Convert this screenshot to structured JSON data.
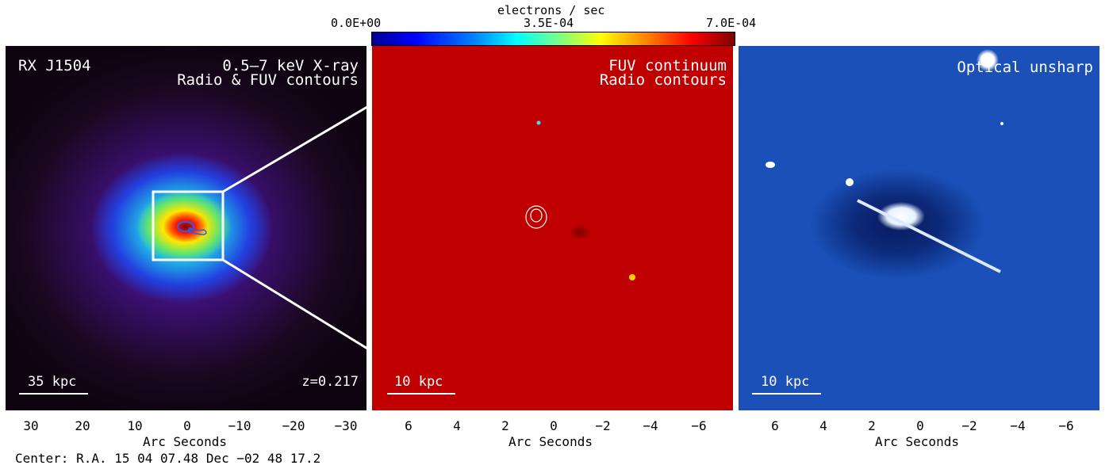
{
  "colorbar": {
    "title": "electrons / sec",
    "min_label": "0.0E+00",
    "mid_label": "3.5E-04",
    "max_label": "7.0E-04"
  },
  "panel1": {
    "name": "RX J1504",
    "band": "0.5–7 keV X-ray",
    "contours": "Radio & FUV contours",
    "scale": "35 kpc",
    "redshift": "z=0.217",
    "ticks": [
      "30",
      "20",
      "10",
      "0",
      "−10",
      "−20",
      "−30"
    ],
    "xlabel": "Arc Seconds",
    "center": "Center:  R.A. 15 04 07.48    Dec  −02 48 17.2"
  },
  "panel2": {
    "band": "FUV continuum",
    "contours": "Radio contours",
    "scale": "10 kpc",
    "ticks": [
      "6",
      "4",
      "2",
      "0",
      "−2",
      "−4",
      "−6"
    ],
    "xlabel": "Arc Seconds"
  },
  "panel3": {
    "band": "Optical unsharp",
    "scale": "10 kpc",
    "ticks": [
      "6",
      "4",
      "2",
      "0",
      "−2",
      "−4",
      "−6"
    ],
    "xlabel": "Arc Seconds"
  }
}
